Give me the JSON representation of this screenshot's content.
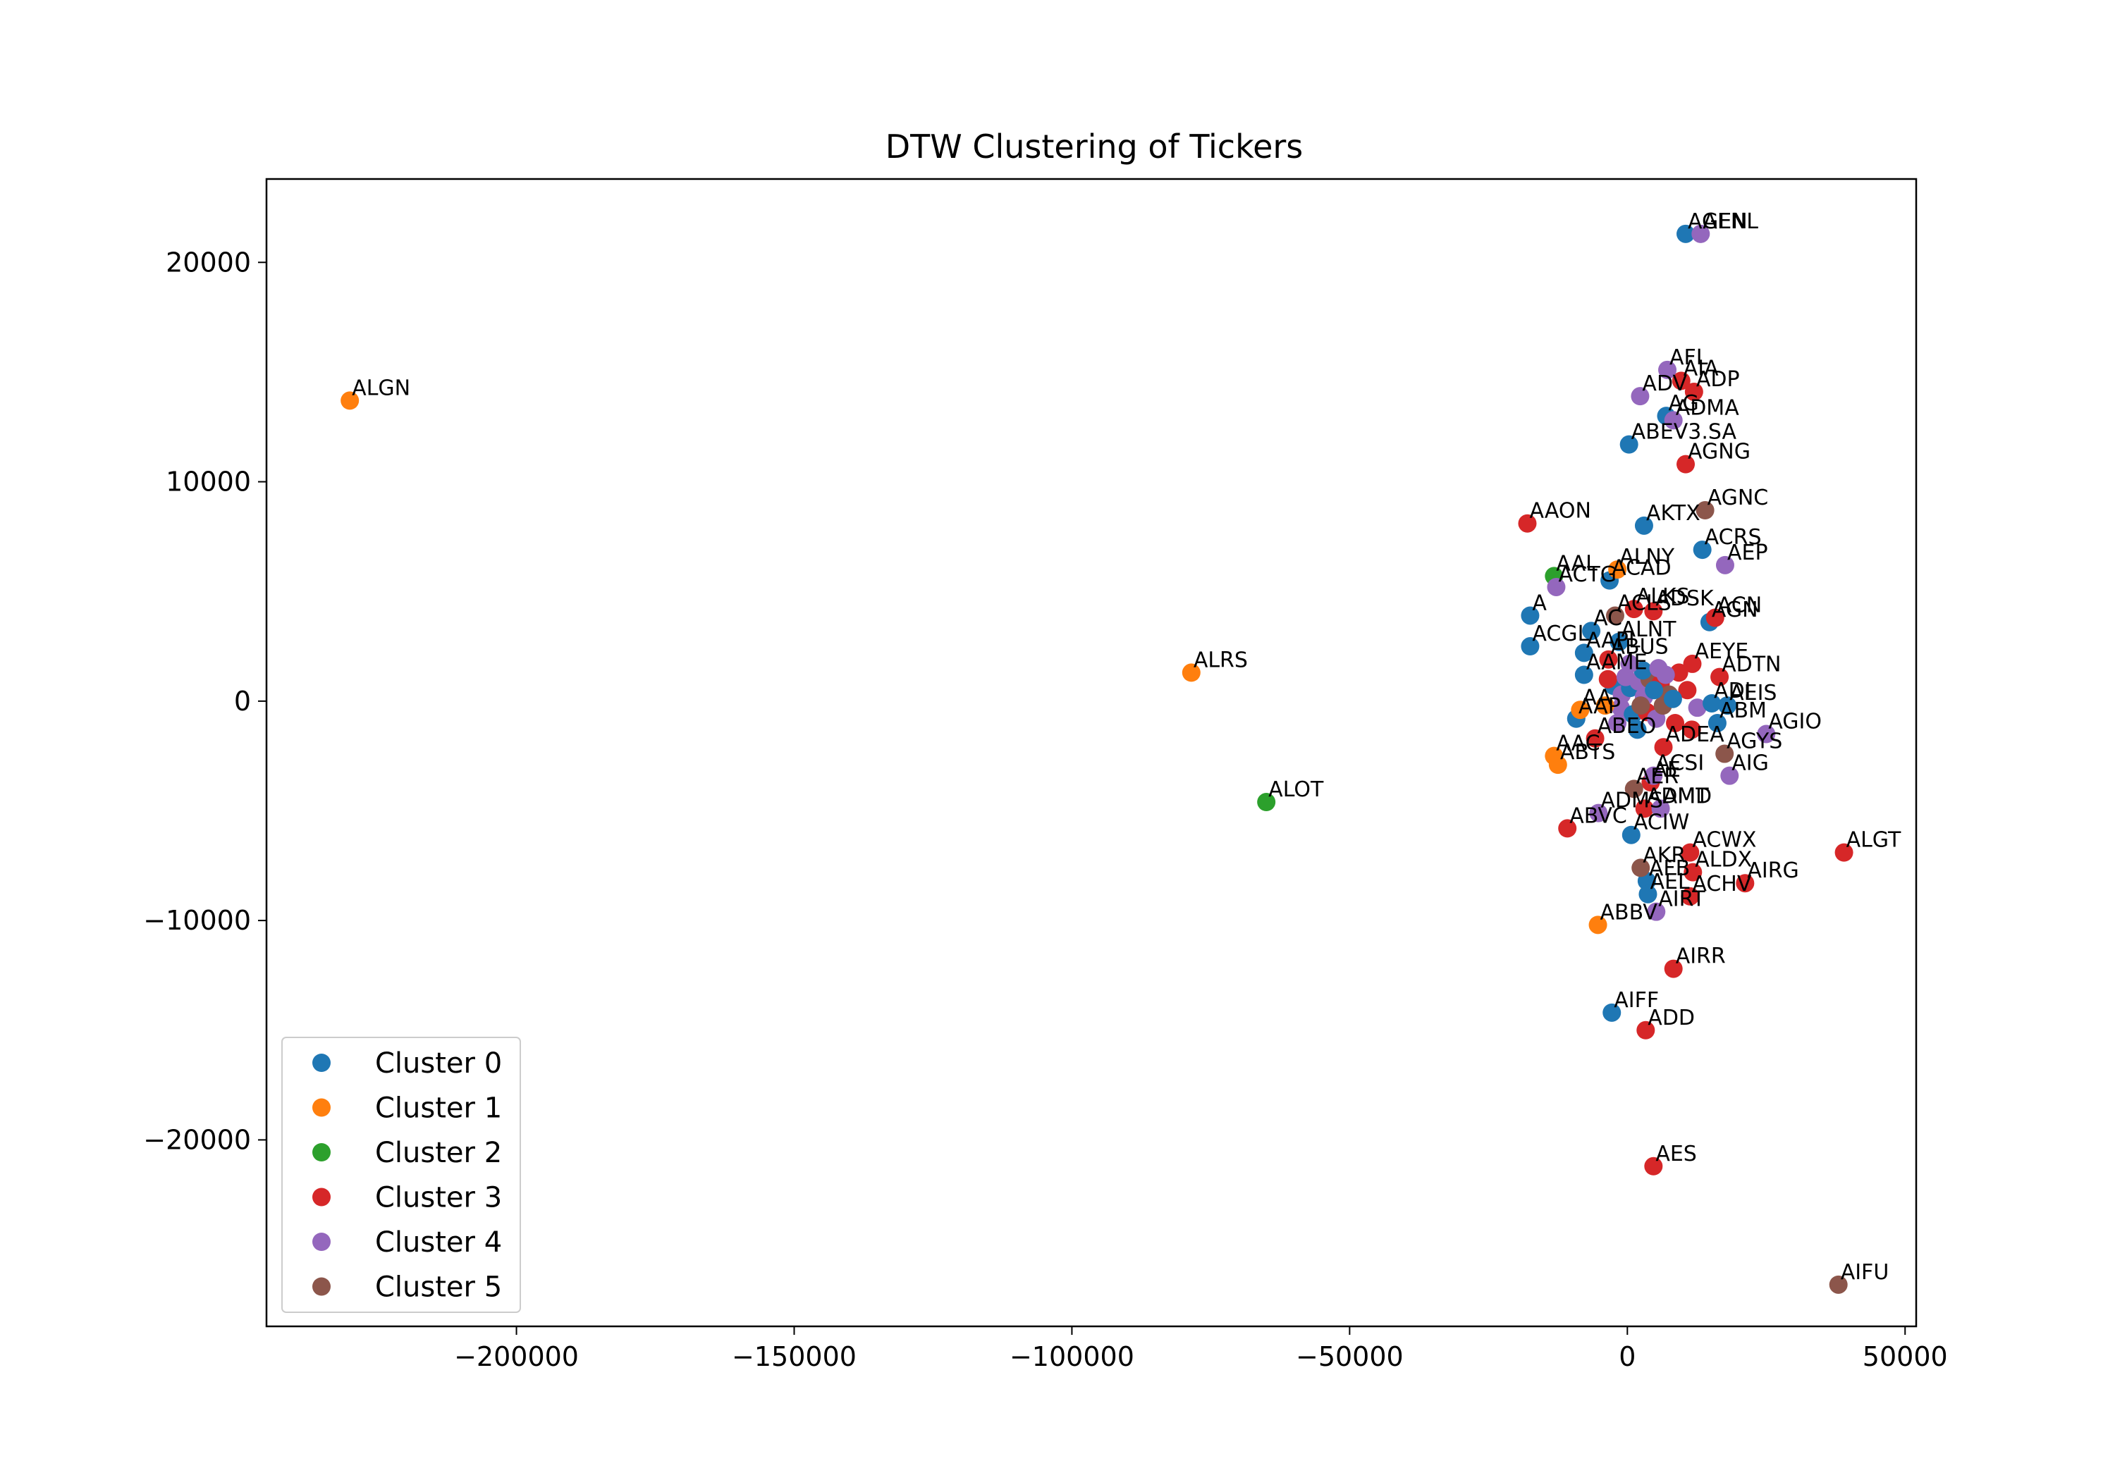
{
  "chart_data": {
    "type": "scatter",
    "title": "DTW Clustering of Tickers",
    "xlabel": "",
    "ylabel": "",
    "xlim": [
      -245000,
      52000
    ],
    "ylim": [
      -28500,
      23800
    ],
    "x_ticks": [
      -200000,
      -150000,
      -100000,
      -50000,
      0,
      50000
    ],
    "x_tick_labels": [
      "−200000",
      "−150000",
      "−100000",
      "−50000",
      "0",
      "50000"
    ],
    "y_ticks": [
      -20000,
      -10000,
      0,
      10000,
      20000
    ],
    "y_tick_labels": [
      "−20000",
      "−10000",
      "0",
      "10000",
      "20000"
    ],
    "grid": false,
    "legend_position": "lower-left",
    "series": [
      {
        "name": "Cluster 0",
        "color": "#1f77b4",
        "points": [
          {
            "label": "AGEN",
            "x": 10500,
            "y": 21300
          },
          {
            "label": "AG",
            "x": 7000,
            "y": 13000
          },
          {
            "label": "ABEV3.SA",
            "x": 300,
            "y": 11700
          },
          {
            "label": "AKTX",
            "x": 3000,
            "y": 8000
          },
          {
            "label": "ACRS",
            "x": 13500,
            "y": 6900
          },
          {
            "label": "ACAD",
            "x": -3200,
            "y": 5500
          },
          {
            "label": "A",
            "x": -17500,
            "y": 3900
          },
          {
            "label": "AGN",
            "x": 14800,
            "y": 3600
          },
          {
            "label": "AC",
            "x": -6500,
            "y": 3200
          },
          {
            "label": "ALNT",
            "x": -1500,
            "y": 2700
          },
          {
            "label": "ACGL",
            "x": -17500,
            "y": 2500
          },
          {
            "label": "AAPL",
            "x": -7800,
            "y": 2200
          },
          {
            "label": "AAME",
            "x": -7800,
            "y": 1200
          },
          {
            "label": "ADI",
            "x": 15200,
            "y": -100
          },
          {
            "label": "AEIS",
            "x": 18000,
            "y": -200
          },
          {
            "label": "ABM",
            "x": 16200,
            "y": -1000
          },
          {
            "label": "AAP",
            "x": -9200,
            "y": -800
          },
          {
            "label": "ACIW",
            "x": 700,
            "y": -6100
          },
          {
            "label": "AFB",
            "x": 3500,
            "y": -8200
          },
          {
            "label": "AEL",
            "x": 3700,
            "y": -8800
          },
          {
            "label": "AIFF",
            "x": -2800,
            "y": -14200
          }
        ]
      },
      {
        "name": "Cluster 1",
        "color": "#ff7f0e",
        "points": [
          {
            "label": "ALGN",
            "x": -230000,
            "y": 13700
          },
          {
            "label": "ALNY",
            "x": -1800,
            "y": 6000
          },
          {
            "label": "ALRS",
            "x": -78500,
            "y": 1300
          },
          {
            "label": "AA",
            "x": -8500,
            "y": -400
          },
          {
            "label": "AAC",
            "x": -13200,
            "y": -2500
          },
          {
            "label": "ABTS",
            "x": -12500,
            "y": -2900
          },
          {
            "label": "ABBV",
            "x": -5300,
            "y": -10200
          }
        ]
      },
      {
        "name": "Cluster 2",
        "color": "#2ca02c",
        "points": [
          {
            "label": "AAL",
            "x": -13200,
            "y": 5700
          },
          {
            "label": "ALOT",
            "x": -65000,
            "y": -4600
          }
        ]
      },
      {
        "name": "Cluster 3",
        "color": "#d62728",
        "points": [
          {
            "label": "AIA",
            "x": 9700,
            "y": 14600
          },
          {
            "label": "ADP",
            "x": 12000,
            "y": 14100
          },
          {
            "label": "AGNG",
            "x": 10500,
            "y": 10800
          },
          {
            "label": "AAON",
            "x": -18000,
            "y": 8100
          },
          {
            "label": "ALKS",
            "x": 1200,
            "y": 4200
          },
          {
            "label": "ADSK",
            "x": 4700,
            "y": 4100
          },
          {
            "label": "ACN",
            "x": 15800,
            "y": 3800
          },
          {
            "label": "AEYE",
            "x": 11700,
            "y": 1700
          },
          {
            "label": "ADTN",
            "x": 16600,
            "y": 1100
          },
          {
            "label": "ABUS",
            "x": -3400,
            "y": 1900
          },
          {
            "label": "ADEA",
            "x": 6500,
            "y": -2100
          },
          {
            "label": "ABEO",
            "x": -5800,
            "y": -1700
          },
          {
            "label": "AE",
            "x": 4200,
            "y": -3700
          },
          {
            "label": "ADMT",
            "x": 3100,
            "y": -4900
          },
          {
            "label": "ABVC",
            "x": -10800,
            "y": -5800
          },
          {
            "label": "ACWX",
            "x": 11300,
            "y": -6900
          },
          {
            "label": "ALGT",
            "x": 39000,
            "y": -6900
          },
          {
            "label": "ALDX",
            "x": 11800,
            "y": -7800
          },
          {
            "label": "AIRG",
            "x": 21200,
            "y": -8300
          },
          {
            "label": "ACHV",
            "x": 11300,
            "y": -8900
          },
          {
            "label": "AIRR",
            "x": 8300,
            "y": -12200
          },
          {
            "label": "ADD",
            "x": 3300,
            "y": -15000
          },
          {
            "label": "AES",
            "x": 4700,
            "y": -21200
          }
        ]
      },
      {
        "name": "Cluster 4",
        "color": "#9467bd",
        "points": [
          {
            "label": "AENL",
            "x": 13200,
            "y": 21300
          },
          {
            "label": "AFL",
            "x": 7200,
            "y": 15100
          },
          {
            "label": "ADV",
            "x": 2300,
            "y": 13900
          },
          {
            "label": "ADMA",
            "x": 8300,
            "y": 12800
          },
          {
            "label": "AEP",
            "x": 17600,
            "y": 6200
          },
          {
            "label": "ACTG",
            "x": -12800,
            "y": 5200
          },
          {
            "label": "AGIO",
            "x": 25000,
            "y": -1500
          },
          {
            "label": "AIG",
            "x": 18400,
            "y": -3400
          },
          {
            "label": "ACSI",
            "x": 4700,
            "y": -3400
          },
          {
            "label": "ADMS",
            "x": -5200,
            "y": -5100
          },
          {
            "label": "AMD",
            "x": 6000,
            "y": -4900
          },
          {
            "label": "AIRT",
            "x": 5200,
            "y": -9600
          }
        ]
      },
      {
        "name": "Cluster 5",
        "color": "#8c564b",
        "points": [
          {
            "label": "AGNC",
            "x": 14000,
            "y": 8700
          },
          {
            "label": "ACLS",
            "x": -2200,
            "y": 3900
          },
          {
            "label": "AGYS",
            "x": 17500,
            "y": -2400
          },
          {
            "label": "AER",
            "x": 1200,
            "y": -4000
          },
          {
            "label": "AKR",
            "x": 2400,
            "y": -7600
          },
          {
            "label": "AIFU",
            "x": 38000,
            "y": -26600
          }
        ]
      }
    ],
    "unlabeled_cluster_points": [
      [
        -2500,
        700
      ],
      [
        -1000,
        300
      ],
      [
        -3500,
        1000
      ],
      [
        500,
        600
      ],
      [
        2000,
        900
      ],
      [
        4000,
        1000
      ],
      [
        6000,
        800
      ],
      [
        -1200,
        -300
      ],
      [
        1000,
        -600
      ],
      [
        3500,
        -500
      ],
      [
        5200,
        -800
      ],
      [
        7500,
        300
      ],
      [
        2800,
        1400
      ],
      [
        -300,
        1100
      ],
      [
        8600,
        -1000
      ],
      [
        -4000,
        -200
      ],
      [
        3000,
        200
      ],
      [
        1800,
        -1300
      ],
      [
        9300,
        1300
      ],
      [
        5600,
        1500
      ],
      [
        6400,
        -200
      ],
      [
        -1800,
        -1000
      ],
      [
        4800,
        500
      ],
      [
        10800,
        500
      ],
      [
        12600,
        -300
      ],
      [
        8200,
        100
      ],
      [
        400,
        1700
      ],
      [
        11600,
        -1300
      ],
      [
        2400,
        -200
      ],
      [
        6900,
        1200
      ]
    ],
    "unlabeled_cluster_colors": [
      "#1f77b4",
      "#9467bd",
      "#d62728",
      "#1f77b4",
      "#9467bd",
      "#8c564b",
      "#d62728",
      "#9467bd",
      "#1f77b4",
      "#d62728",
      "#9467bd",
      "#8c564b",
      "#1f77b4",
      "#9467bd",
      "#d62728",
      "#ff7f0e",
      "#9467bd",
      "#1f77b4",
      "#d62728",
      "#9467bd",
      "#8c564b",
      "#9467bd",
      "#1f77b4",
      "#d62728",
      "#9467bd",
      "#1f77b4",
      "#9467bd",
      "#d62728",
      "#8c564b",
      "#9467bd"
    ]
  }
}
